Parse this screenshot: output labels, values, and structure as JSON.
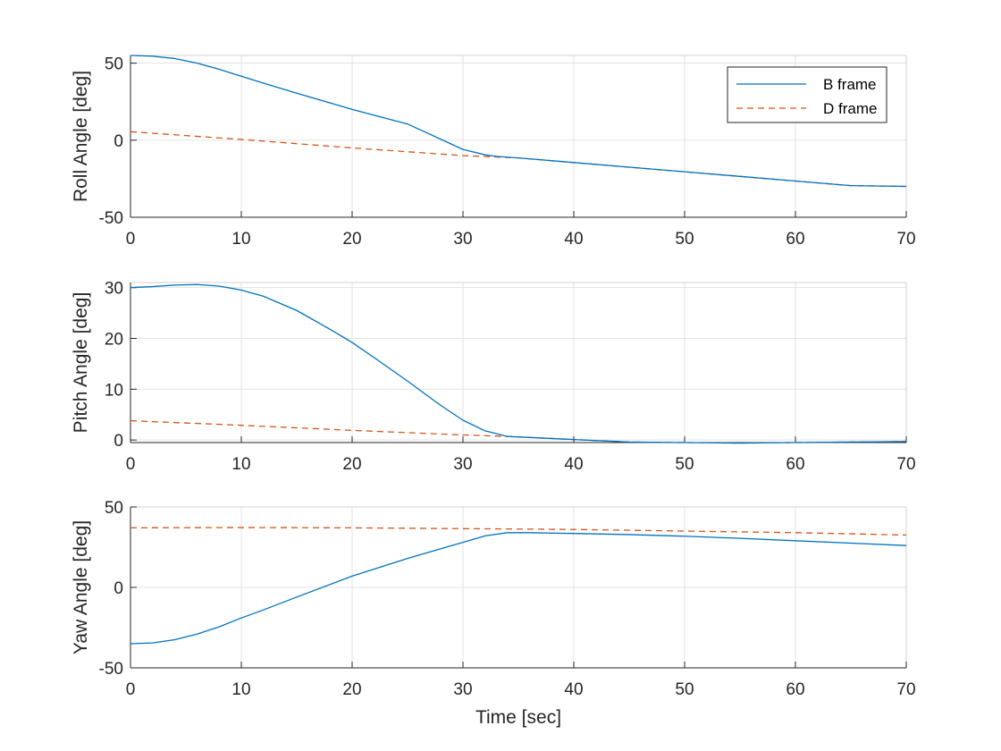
{
  "chart_data": [
    {
      "type": "line",
      "ylabel": "Roll Angle [deg]",
      "xlim": [
        0,
        70
      ],
      "ylim": [
        -50,
        55
      ],
      "xticks": [
        0,
        10,
        20,
        30,
        40,
        50,
        60,
        70
      ],
      "yticks": [
        -50,
        0,
        50
      ],
      "grid": true,
      "legend": {
        "placement": "top-right",
        "entries": [
          "B frame",
          "D frame"
        ]
      },
      "series": [
        {
          "name": "B frame",
          "color": "#0072BD",
          "style": "solid",
          "x": [
            0,
            2,
            4,
            6,
            8,
            10,
            12,
            15,
            20,
            25,
            30,
            32,
            33,
            35,
            40,
            45,
            50,
            55,
            60,
            65,
            70
          ],
          "y": [
            55,
            54.5,
            53,
            50,
            46,
            41.5,
            37,
            30.5,
            20,
            10.5,
            -6,
            -9.5,
            -10.5,
            -11.5,
            -14.5,
            -17.5,
            -20.5,
            -23.5,
            -26.5,
            -29.5,
            -30
          ]
        },
        {
          "name": "D frame",
          "color": "#D95319",
          "style": "dashed",
          "x": [
            0,
            10,
            20,
            30,
            35,
            40,
            45,
            50,
            55,
            60,
            65,
            70
          ],
          "y": [
            5.5,
            0.5,
            -5,
            -10,
            -11.5,
            -14.5,
            -17.5,
            -20.5,
            -23.5,
            -26.5,
            -29.5,
            -30
          ]
        }
      ]
    },
    {
      "type": "line",
      "ylabel": "Pitch Angle [deg]",
      "xlim": [
        0,
        70
      ],
      "ylim": [
        -0.5,
        31
      ],
      "xticks": [
        0,
        10,
        20,
        30,
        40,
        50,
        60,
        70
      ],
      "yticks": [
        0,
        10,
        20,
        30
      ],
      "grid": true,
      "series": [
        {
          "name": "B frame",
          "color": "#0072BD",
          "style": "solid",
          "x": [
            0,
            2,
            4,
            6,
            8,
            10,
            12,
            15,
            18,
            20,
            22,
            25,
            28,
            30,
            32,
            34,
            36,
            40,
            45,
            50,
            55,
            60,
            65,
            70
          ],
          "y": [
            30,
            30.2,
            30.5,
            30.6,
            30.3,
            29.5,
            28.3,
            25.5,
            21.8,
            19.2,
            16.2,
            11.6,
            6.8,
            3.9,
            1.8,
            0.7,
            0.5,
            0.1,
            -0.4,
            -0.5,
            -0.6,
            -0.5,
            -0.4,
            -0.3
          ]
        },
        {
          "name": "D frame",
          "color": "#D95319",
          "style": "dashed",
          "x": [
            0,
            10,
            20,
            30,
            34,
            40,
            45,
            50,
            55,
            60,
            65,
            70
          ],
          "y": [
            3.8,
            2.9,
            1.9,
            1.0,
            0.7,
            0.1,
            -0.4,
            -0.5,
            -0.6,
            -0.5,
            -0.4,
            -0.3
          ]
        }
      ]
    },
    {
      "type": "line",
      "ylabel": "Yaw Angle [deg]",
      "xlabel": "Time [sec]",
      "xlim": [
        0,
        70
      ],
      "ylim": [
        -50,
        50
      ],
      "xticks": [
        0,
        10,
        20,
        30,
        40,
        50,
        60,
        70
      ],
      "yticks": [
        -50,
        0,
        50
      ],
      "grid": true,
      "series": [
        {
          "name": "B frame",
          "color": "#0072BD",
          "style": "solid",
          "x": [
            0,
            2,
            4,
            6,
            8,
            10,
            12,
            15,
            20,
            25,
            28,
            30,
            32,
            34,
            36,
            40,
            45,
            50,
            55,
            60,
            65,
            70
          ],
          "y": [
            -35,
            -34.5,
            -32.5,
            -29,
            -24.5,
            -19,
            -14,
            -6,
            7,
            18,
            24,
            28,
            32,
            34,
            34,
            33.5,
            32.8,
            31.8,
            30.5,
            29,
            27.5,
            26
          ]
        },
        {
          "name": "D frame",
          "color": "#D95319",
          "style": "dashed",
          "x": [
            0,
            10,
            20,
            30,
            34,
            40,
            45,
            50,
            55,
            60,
            65,
            70
          ],
          "y": [
            37,
            37.2,
            37.0,
            36.5,
            36.3,
            36.0,
            35.5,
            35.0,
            34.5,
            34.0,
            33.3,
            32.5
          ]
        }
      ]
    }
  ]
}
